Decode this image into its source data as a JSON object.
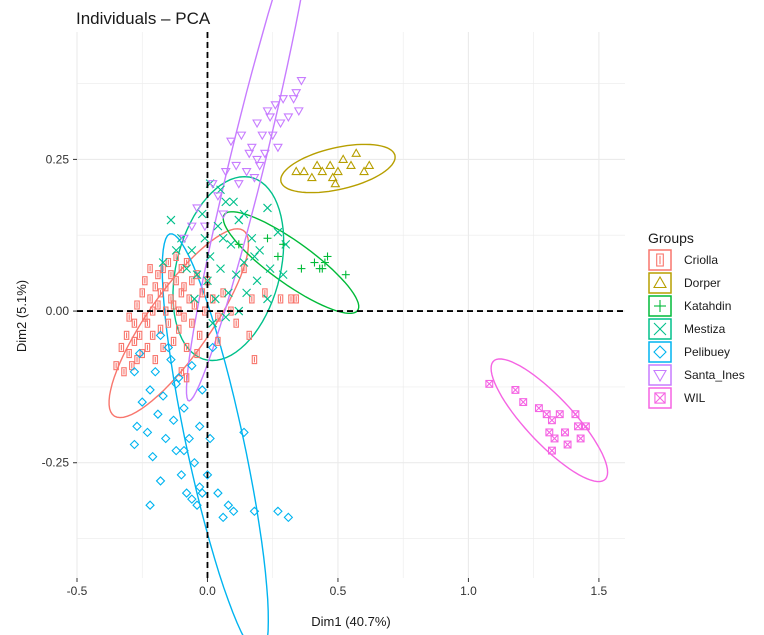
{
  "chart_data": {
    "type": "scatter",
    "title": "Individuals – PCA",
    "xlabel": "Dim1 (40.7%)",
    "ylabel": "Dim2 (5.1%)",
    "xlim": [
      -0.5,
      1.6
    ],
    "ylim": [
      -0.44,
      0.46
    ],
    "x_ticks": [
      -0.5,
      0.0,
      0.5,
      1.0,
      1.5
    ],
    "x_tick_labels": [
      "-0.5",
      "0.0",
      "0.5",
      "1.0",
      "1.5"
    ],
    "y_ticks": [
      -0.25,
      0.0,
      0.25
    ],
    "y_tick_labels": [
      "-0.25",
      "0.00",
      "0.25"
    ],
    "grid": true,
    "reference_lines": {
      "x": 0,
      "y": 0,
      "style": "dashed"
    },
    "legend": {
      "title": "Groups",
      "position": "right"
    },
    "series": [
      {
        "name": "Criolla",
        "color": "#F8766D",
        "marker": "square-bar",
        "points": [
          [
            -0.35,
            -0.09
          ],
          [
            -0.33,
            -0.06
          ],
          [
            -0.32,
            -0.1
          ],
          [
            -0.31,
            -0.04
          ],
          [
            -0.3,
            -0.07
          ],
          [
            -0.3,
            -0.01
          ],
          [
            -0.29,
            -0.09
          ],
          [
            -0.28,
            -0.05
          ],
          [
            -0.28,
            -0.02
          ],
          [
            -0.27,
            0.01
          ],
          [
            -0.27,
            -0.08
          ],
          [
            -0.26,
            -0.04
          ],
          [
            -0.25,
            0.03
          ],
          [
            -0.25,
            -0.07
          ],
          [
            -0.24,
            -0.01
          ],
          [
            -0.24,
            0.05
          ],
          [
            -0.23,
            -0.06
          ],
          [
            -0.23,
            -0.02
          ],
          [
            -0.22,
            0.02
          ],
          [
            -0.22,
            0.07
          ],
          [
            -0.21,
            -0.04
          ],
          [
            -0.21,
            0.0
          ],
          [
            -0.2,
            0.04
          ],
          [
            -0.2,
            -0.08
          ],
          [
            -0.19,
            0.01
          ],
          [
            -0.19,
            0.06
          ],
          [
            -0.18,
            -0.03
          ],
          [
            -0.18,
            0.03
          ],
          [
            -0.17,
            0.07
          ],
          [
            -0.17,
            -0.06
          ],
          [
            -0.16,
            0.0
          ],
          [
            -0.16,
            0.04
          ],
          [
            -0.15,
            0.08
          ],
          [
            -0.15,
            -0.02
          ],
          [
            -0.14,
            0.02
          ],
          [
            -0.14,
            0.06
          ],
          [
            -0.13,
            -0.05
          ],
          [
            -0.13,
            0.01
          ],
          [
            -0.12,
            0.05
          ],
          [
            -0.12,
            0.09
          ],
          [
            -0.11,
            0.0
          ],
          [
            -0.11,
            -0.03
          ],
          [
            -0.1,
            0.03
          ],
          [
            -0.1,
            0.07
          ],
          [
            -0.09,
            -0.01
          ],
          [
            -0.09,
            0.04
          ],
          [
            -0.08,
            0.08
          ],
          [
            -0.08,
            -0.06
          ],
          [
            -0.07,
            0.02
          ],
          [
            -0.06,
            0.05
          ],
          [
            -0.06,
            -0.02
          ],
          [
            -0.05,
            0.01
          ],
          [
            -0.04,
            0.06
          ],
          [
            -0.03,
            -0.04
          ],
          [
            -0.02,
            0.03
          ],
          [
            -0.01,
            0.0
          ],
          [
            0.0,
            0.05
          ],
          [
            0.02,
            0.02
          ],
          [
            0.04,
            -0.01
          ],
          [
            0.06,
            0.03
          ],
          [
            0.09,
            0.0
          ],
          [
            0.11,
            -0.02
          ],
          [
            0.16,
            -0.04
          ],
          [
            0.17,
            0.02
          ],
          [
            0.22,
            0.03
          ],
          [
            0.28,
            0.02
          ],
          [
            0.32,
            0.02
          ],
          [
            0.34,
            0.02
          ],
          [
            0.14,
            0.07
          ],
          [
            -0.1,
            -0.1
          ],
          [
            -0.04,
            -0.07
          ],
          [
            0.04,
            -0.05
          ],
          [
            -0.08,
            -0.11
          ],
          [
            0.18,
            -0.08
          ]
        ]
      },
      {
        "name": "Dorper",
        "color": "#B79F00",
        "marker": "triangle-up",
        "points": [
          [
            0.34,
            0.23
          ],
          [
            0.37,
            0.23
          ],
          [
            0.4,
            0.22
          ],
          [
            0.42,
            0.24
          ],
          [
            0.44,
            0.23
          ],
          [
            0.47,
            0.24
          ],
          [
            0.48,
            0.22
          ],
          [
            0.5,
            0.23
          ],
          [
            0.52,
            0.25
          ],
          [
            0.55,
            0.24
          ],
          [
            0.57,
            0.26
          ],
          [
            0.6,
            0.23
          ],
          [
            0.62,
            0.24
          ],
          [
            0.49,
            0.21
          ]
        ]
      },
      {
        "name": "Katahdin",
        "color": "#00BA38",
        "marker": "plus",
        "points": [
          [
            0.12,
            0.11
          ],
          [
            0.23,
            0.12
          ],
          [
            0.27,
            0.09
          ],
          [
            0.29,
            0.11
          ],
          [
            0.36,
            0.07
          ],
          [
            0.41,
            0.08
          ],
          [
            0.43,
            0.07
          ],
          [
            0.45,
            0.08
          ],
          [
            0.46,
            0.09
          ],
          [
            0.53,
            0.06
          ],
          [
            0.44,
            0.07
          ]
        ]
      },
      {
        "name": "Mestiza",
        "color": "#00C08B",
        "marker": "x",
        "points": [
          [
            -0.14,
            0.15
          ],
          [
            -0.1,
            0.12
          ],
          [
            -0.06,
            0.1
          ],
          [
            -0.02,
            0.16
          ],
          [
            0.01,
            0.09
          ],
          [
            0.04,
            0.14
          ],
          [
            0.07,
            0.18
          ],
          [
            0.09,
            0.11
          ],
          [
            0.12,
            0.15
          ],
          [
            0.14,
            0.08
          ],
          [
            0.17,
            0.12
          ],
          [
            0.2,
            0.1
          ],
          [
            0.23,
            0.17
          ],
          [
            0.24,
            0.07
          ],
          [
            0.27,
            0.13
          ],
          [
            0.29,
            0.06
          ],
          [
            0.3,
            0.11
          ],
          [
            0.23,
            0.02
          ],
          [
            0.19,
            0.05
          ],
          [
            0.15,
            0.03
          ],
          [
            0.11,
            0.06
          ],
          [
            0.08,
            0.03
          ],
          [
            0.05,
            0.07
          ],
          [
            0.03,
            0.02
          ],
          [
            0.0,
            0.05
          ],
          [
            -0.04,
            0.06
          ],
          [
            -0.08,
            0.07
          ],
          [
            -0.12,
            0.1
          ],
          [
            -0.17,
            0.08
          ],
          [
            0.01,
            0.21
          ],
          [
            0.05,
            0.2
          ],
          [
            0.1,
            0.18
          ],
          [
            0.14,
            0.16
          ],
          [
            0.06,
            0.12
          ],
          [
            -0.01,
            0.12
          ],
          [
            0.18,
            0.09
          ],
          [
            0.02,
            -0.02
          ],
          [
            0.07,
            -0.01
          ],
          [
            -0.05,
            0.02
          ],
          [
            0.12,
            0.0
          ]
        ]
      },
      {
        "name": "Pelibuey",
        "color": "#00B4F0",
        "marker": "diamond",
        "points": [
          [
            -0.28,
            -0.1
          ],
          [
            -0.27,
            -0.19
          ],
          [
            -0.26,
            -0.07
          ],
          [
            -0.25,
            -0.15
          ],
          [
            -0.23,
            -0.2
          ],
          [
            -0.22,
            -0.13
          ],
          [
            -0.21,
            -0.24
          ],
          [
            -0.2,
            -0.1
          ],
          [
            -0.19,
            -0.17
          ],
          [
            -0.18,
            -0.28
          ],
          [
            -0.17,
            -0.14
          ],
          [
            -0.16,
            -0.21
          ],
          [
            -0.14,
            -0.08
          ],
          [
            -0.13,
            -0.18
          ],
          [
            -0.12,
            -0.23
          ],
          [
            -0.11,
            -0.11
          ],
          [
            -0.1,
            -0.27
          ],
          [
            -0.09,
            -0.16
          ],
          [
            -0.08,
            -0.3
          ],
          [
            -0.07,
            -0.21
          ],
          [
            -0.06,
            -0.09
          ],
          [
            -0.05,
            -0.25
          ],
          [
            -0.04,
            -0.32
          ],
          [
            -0.03,
            -0.19
          ],
          [
            -0.02,
            -0.13
          ],
          [
            0.0,
            -0.27
          ],
          [
            0.01,
            -0.21
          ],
          [
            0.02,
            -0.06
          ],
          [
            0.04,
            -0.3
          ],
          [
            0.06,
            -0.34
          ],
          [
            0.08,
            -0.32
          ],
          [
            0.1,
            -0.33
          ],
          [
            0.14,
            -0.2
          ],
          [
            0.18,
            -0.33
          ],
          [
            0.27,
            -0.33
          ],
          [
            0.31,
            -0.34
          ],
          [
            -0.22,
            -0.32
          ],
          [
            -0.28,
            -0.22
          ],
          [
            -0.15,
            -0.06
          ],
          [
            -0.06,
            -0.31
          ],
          [
            -0.02,
            -0.3
          ],
          [
            -0.09,
            -0.23
          ],
          [
            -0.12,
            -0.12
          ],
          [
            -0.18,
            -0.04
          ],
          [
            -0.03,
            -0.29
          ]
        ]
      },
      {
        "name": "Santa_Ines",
        "color": "#C77CFF",
        "marker": "triangle-down",
        "points": [
          [
            -0.09,
            0.12
          ],
          [
            -0.04,
            0.17
          ],
          [
            -0.01,
            0.14
          ],
          [
            0.02,
            0.21
          ],
          [
            0.04,
            0.19
          ],
          [
            0.07,
            0.23
          ],
          [
            0.09,
            0.28
          ],
          [
            0.11,
            0.24
          ],
          [
            0.13,
            0.29
          ],
          [
            0.15,
            0.23
          ],
          [
            0.17,
            0.27
          ],
          [
            0.19,
            0.31
          ],
          [
            0.21,
            0.29
          ],
          [
            0.22,
            0.26
          ],
          [
            0.24,
            0.32
          ],
          [
            0.25,
            0.29
          ],
          [
            0.26,
            0.34
          ],
          [
            0.28,
            0.31
          ],
          [
            0.29,
            0.35
          ],
          [
            0.31,
            0.32
          ],
          [
            0.34,
            0.36
          ],
          [
            0.36,
            0.38
          ],
          [
            0.35,
            0.33
          ],
          [
            0.33,
            0.35
          ],
          [
            0.27,
            0.27
          ],
          [
            0.23,
            0.33
          ],
          [
            0.19,
            0.25
          ],
          [
            0.12,
            0.21
          ],
          [
            0.06,
            0.16
          ],
          [
            -0.06,
            0.14
          ],
          [
            0.16,
            0.26
          ],
          [
            0.2,
            0.24
          ],
          [
            0.18,
            0.22
          ]
        ]
      },
      {
        "name": "WIL",
        "color": "#F564E3",
        "marker": "square-x",
        "points": [
          [
            1.08,
            -0.12
          ],
          [
            1.18,
            -0.13
          ],
          [
            1.21,
            -0.15
          ],
          [
            1.27,
            -0.16
          ],
          [
            1.3,
            -0.17
          ],
          [
            1.32,
            -0.18
          ],
          [
            1.31,
            -0.2
          ],
          [
            1.33,
            -0.21
          ],
          [
            1.35,
            -0.17
          ],
          [
            1.37,
            -0.2
          ],
          [
            1.38,
            -0.22
          ],
          [
            1.41,
            -0.17
          ],
          [
            1.42,
            -0.19
          ],
          [
            1.43,
            -0.21
          ],
          [
            1.45,
            -0.19
          ],
          [
            1.32,
            -0.23
          ]
        ]
      }
    ],
    "ellipses": [
      {
        "group": "Criolla",
        "color": "#F8766D",
        "cx": -0.11,
        "cy": -0.02,
        "rx": 0.3,
        "ry": 0.075,
        "angle_deg": 28
      },
      {
        "group": "Dorper",
        "color": "#B79F00",
        "cx": 0.5,
        "cy": 0.235,
        "rx": 0.22,
        "ry": 0.035,
        "angle_deg": 5
      },
      {
        "group": "Katahdin",
        "color": "#00BA38",
        "cx": 0.32,
        "cy": 0.08,
        "rx": 0.27,
        "ry": 0.04,
        "angle_deg": -16
      },
      {
        "group": "Mestiza",
        "color": "#00C08B",
        "cx": 0.08,
        "cy": 0.07,
        "rx": 0.22,
        "ry": 0.14,
        "angle_deg": 20
      },
      {
        "group": "Pelibuey",
        "color": "#00B4F0",
        "cx": 0.03,
        "cy": -0.22,
        "rx": 0.39,
        "ry": 0.1,
        "angle_deg": -62
      },
      {
        "group": "Santa_Ines",
        "color": "#C77CFF",
        "cx": 0.16,
        "cy": 0.26,
        "rx": 0.47,
        "ry": 0.06,
        "angle_deg": 60
      },
      {
        "group": "WIL",
        "color": "#F564E3",
        "cx": 1.31,
        "cy": -0.18,
        "rx": 0.24,
        "ry": 0.05,
        "angle_deg": -22
      }
    ]
  }
}
